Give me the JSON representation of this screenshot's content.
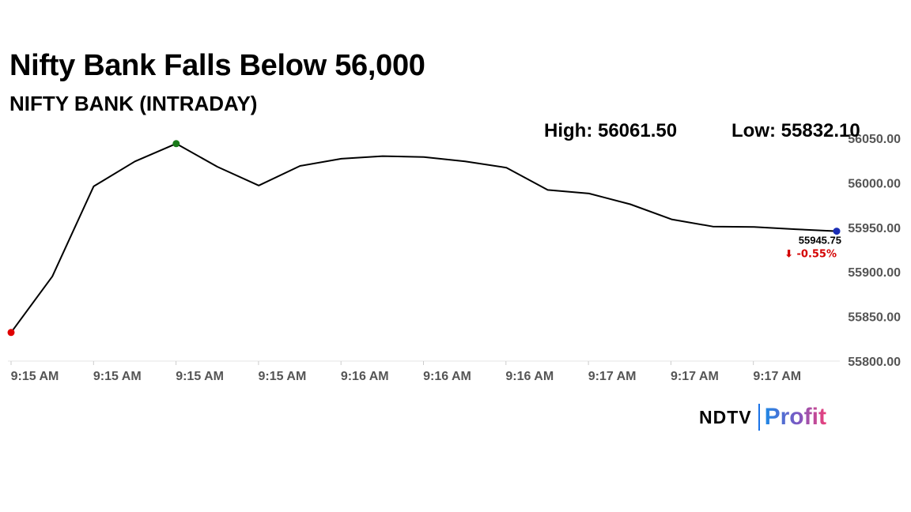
{
  "headline": "Nifty Bank Falls Below 56,000",
  "subheadline": "NIFTY BANK (INTRADAY)",
  "stats": {
    "high": "High: 56061.50",
    "low": "Low: 55832.10"
  },
  "logo": {
    "ndtv": "NDTV",
    "profit": "Profit"
  },
  "chart_data": {
    "type": "line",
    "x": [
      "9:15 AM",
      "9:15 AM",
      "9:15 AM",
      "9:15 AM",
      "9:15 AM",
      "9:15 AM",
      "9:15 AM",
      "9:16 AM",
      "9:16 AM",
      "9:16 AM",
      "9:16 AM",
      "9:16 AM",
      "9:16 AM",
      "9:17 AM",
      "9:17 AM",
      "9:17 AM",
      "9:17 AM",
      "9:17 AM",
      "9:17 AM",
      "9:17 AM",
      "9:17 AM"
    ],
    "y": [
      55832.1,
      55895.0,
      55996.0,
      56024.0,
      56044.0,
      56018.0,
      55997.0,
      56019.0,
      56027.0,
      56030.0,
      56029.0,
      56024.0,
      56017.0,
      55992.0,
      55988.0,
      55976.0,
      55959.0,
      55951.0,
      55950.5,
      55948.0,
      55945.75
    ],
    "x_tick_labels": [
      "9:15 AM",
      "9:15 AM",
      "9:15 AM",
      "9:15 AM",
      "9:16 AM",
      "9:16 AM",
      "9:16 AM",
      "9:17 AM",
      "9:17 AM",
      "9:17 AM"
    ],
    "y_tick_labels": [
      "56050.00",
      "56000.00",
      "55950.00",
      "55900.00",
      "55850.00",
      "55800.00"
    ],
    "ylim": [
      55800,
      56050
    ],
    "last_value_label": "55945.75",
    "change_label": "⬇ -0.55%",
    "markers": {
      "start_color": "#e00000",
      "high_color": "#1a7a1a",
      "last_color": "#1a2db5"
    },
    "line_color": "#000000",
    "change_color": "#d40000",
    "grid": false
  }
}
